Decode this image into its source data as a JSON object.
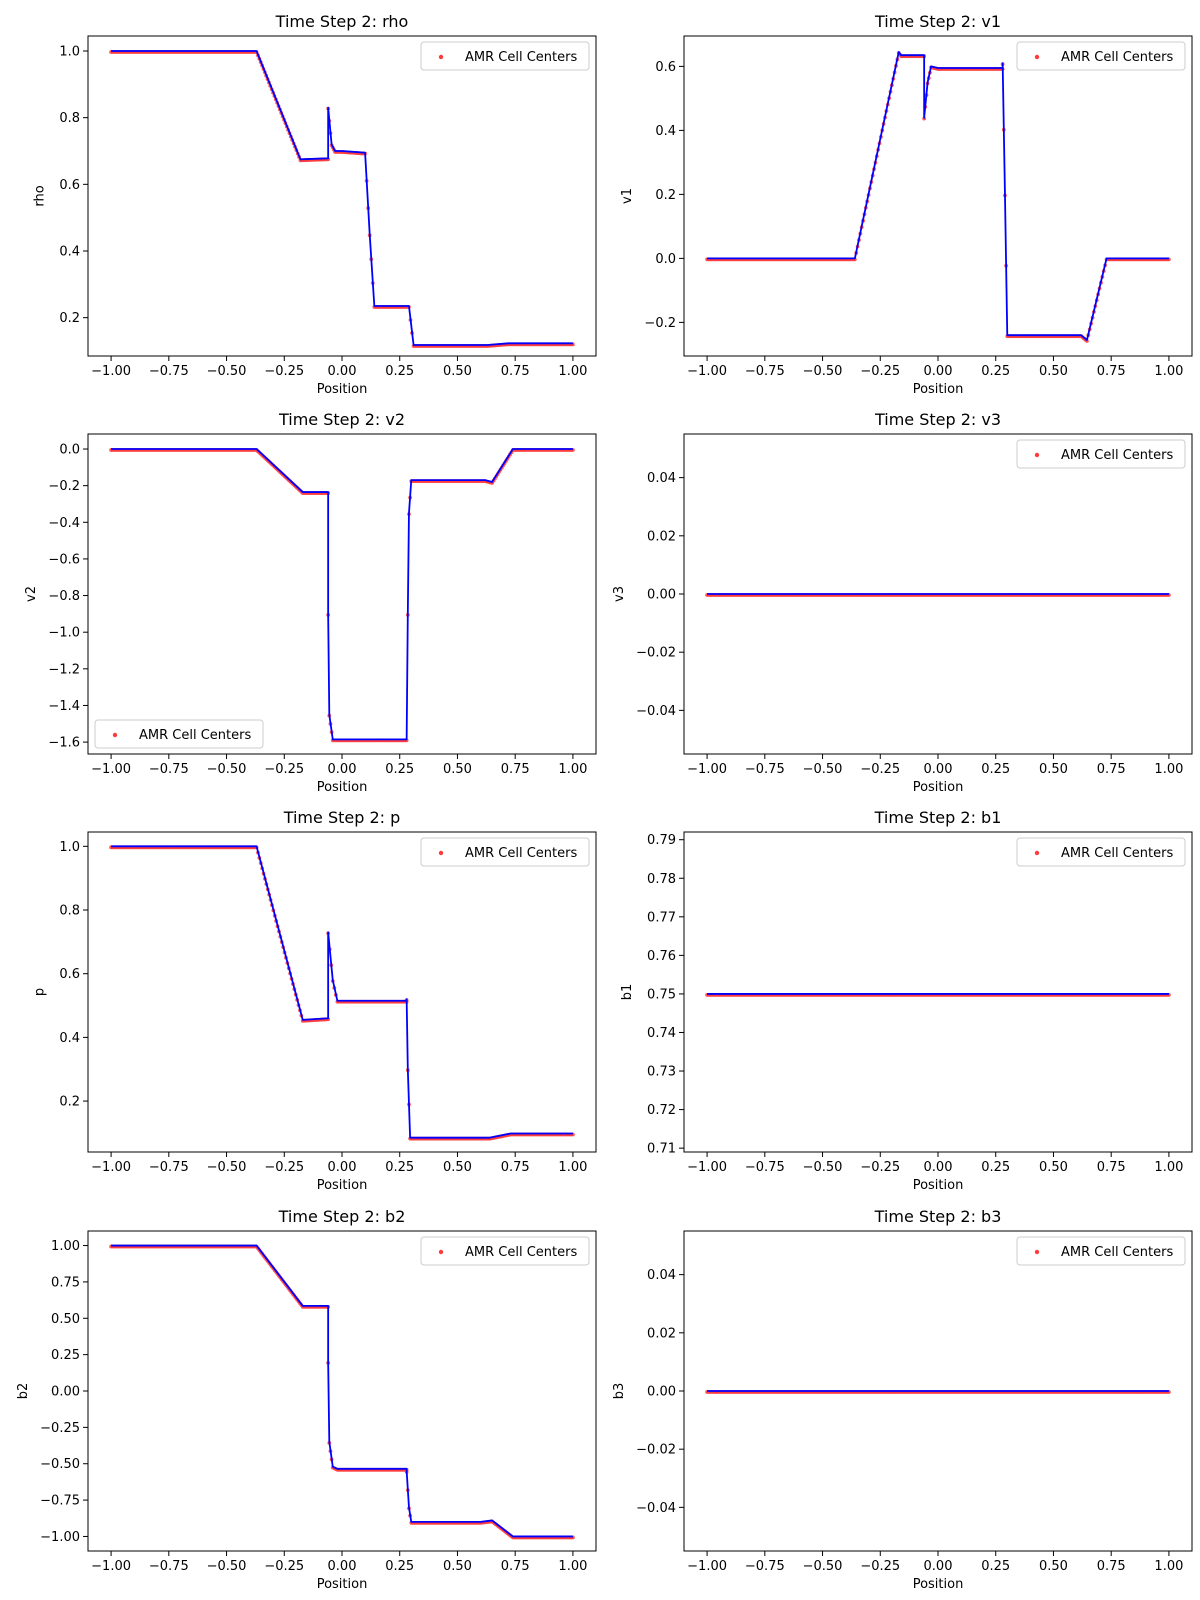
{
  "figure": {
    "accent_line": "#0000ff",
    "accent_points": "#ff3b3b"
  },
  "chart_data": [
    {
      "id": "rho",
      "type": "line",
      "title": "Time Step 2: rho",
      "xlabel": "Position",
      "ylabel": "rho",
      "xlim": [
        -1.1,
        1.1
      ],
      "ylim": [
        0.085,
        1.045
      ],
      "xticks": [
        -1.0,
        -0.75,
        -0.5,
        -0.25,
        0.0,
        0.25,
        0.5,
        0.75,
        1.0
      ],
      "xtick_labels": [
        "−1.00",
        "−0.75",
        "−0.50",
        "−0.25",
        "0.00",
        "0.25",
        "0.50",
        "0.75",
        "1.00"
      ],
      "yticks": [
        0.2,
        0.4,
        0.6,
        0.8,
        1.0
      ],
      "ytick_labels": [
        "0.2",
        "0.4",
        "0.6",
        "0.8",
        "1.0"
      ],
      "legend": {
        "label": "AMR Cell Centers",
        "loc": "upper right"
      },
      "series": [
        {
          "style": "line+points",
          "x": [
            -1.0,
            -0.37,
            -0.18,
            -0.06,
            -0.06,
            -0.045,
            -0.03,
            0.0,
            0.1,
            0.12,
            0.14,
            0.27,
            0.29,
            0.31,
            0.63,
            0.72,
            1.0
          ],
          "y": [
            1.0,
            1.0,
            0.675,
            0.678,
            0.83,
            0.72,
            0.7,
            0.7,
            0.695,
            0.45,
            0.235,
            0.235,
            0.235,
            0.118,
            0.118,
            0.123,
            0.123
          ]
        }
      ]
    },
    {
      "id": "v1",
      "type": "line",
      "title": "Time Step 2: v1",
      "xlabel": "Position",
      "ylabel": "v1",
      "xlim": [
        -1.1,
        1.1
      ],
      "ylim": [
        -0.305,
        0.695
      ],
      "xticks": [
        -1.0,
        -0.75,
        -0.5,
        -0.25,
        0.0,
        0.25,
        0.5,
        0.75,
        1.0
      ],
      "xtick_labels": [
        "−1.00",
        "−0.75",
        "−0.50",
        "−0.25",
        "0.00",
        "0.25",
        "0.50",
        "0.75",
        "1.00"
      ],
      "yticks": [
        -0.2,
        0.0,
        0.2,
        0.4,
        0.6
      ],
      "ytick_labels": [
        "−0.2",
        "0.0",
        "0.2",
        "0.4",
        "0.6"
      ],
      "legend": {
        "label": "AMR Cell Centers",
        "loc": "upper right"
      },
      "series": [
        {
          "style": "line+points",
          "x": [
            -1.0,
            -0.36,
            -0.17,
            -0.16,
            -0.06,
            -0.06,
            -0.045,
            -0.03,
            0.0,
            0.28,
            0.28,
            0.29,
            0.3,
            0.62,
            0.645,
            0.73,
            1.0
          ],
          "y": [
            0.0,
            0.0,
            0.645,
            0.635,
            0.635,
            0.44,
            0.55,
            0.6,
            0.595,
            0.595,
            0.61,
            0.2,
            -0.24,
            -0.24,
            -0.255,
            0.0,
            0.0
          ]
        }
      ]
    },
    {
      "id": "v2",
      "type": "line",
      "title": "Time Step 2: v2",
      "xlabel": "Position",
      "ylabel": "v2",
      "xlim": [
        -1.1,
        1.1
      ],
      "ylim": [
        -1.665,
        0.082
      ],
      "xticks": [
        -1.0,
        -0.75,
        -0.5,
        -0.25,
        0.0,
        0.25,
        0.5,
        0.75,
        1.0
      ],
      "xtick_labels": [
        "−1.00",
        "−0.75",
        "−0.50",
        "−0.25",
        "0.00",
        "0.25",
        "0.50",
        "0.75",
        "1.00"
      ],
      "yticks": [
        -1.6,
        -1.4,
        -1.2,
        -1.0,
        -0.8,
        -0.6,
        -0.4,
        -0.2,
        0.0
      ],
      "ytick_labels": [
        "−1.6",
        "−1.4",
        "−1.2",
        "−1.0",
        "−0.8",
        "−0.6",
        "−0.4",
        "−0.2",
        "0.0"
      ],
      "legend": {
        "label": "AMR Cell Centers",
        "loc": "lower left"
      },
      "series": [
        {
          "style": "line+points",
          "x": [
            -1.0,
            -0.37,
            -0.17,
            -0.06,
            -0.06,
            -0.055,
            -0.04,
            0.28,
            0.285,
            0.29,
            0.3,
            0.62,
            0.65,
            0.74,
            1.0
          ],
          "y": [
            0.0,
            0.0,
            -0.235,
            -0.235,
            -0.9,
            -1.45,
            -1.585,
            -1.585,
            -0.9,
            -0.35,
            -0.17,
            -0.17,
            -0.18,
            0.0,
            0.0
          ]
        }
      ]
    },
    {
      "id": "v3",
      "type": "line",
      "title": "Time Step 2: v3",
      "xlabel": "Position",
      "ylabel": "v3",
      "xlim": [
        -1.1,
        1.1
      ],
      "ylim": [
        -0.055,
        0.055
      ],
      "xticks": [
        -1.0,
        -0.75,
        -0.5,
        -0.25,
        0.0,
        0.25,
        0.5,
        0.75,
        1.0
      ],
      "xtick_labels": [
        "−1.00",
        "−0.75",
        "−0.50",
        "−0.25",
        "0.00",
        "0.25",
        "0.50",
        "0.75",
        "1.00"
      ],
      "yticks": [
        -0.04,
        -0.02,
        0.0,
        0.02,
        0.04
      ],
      "ytick_labels": [
        "−0.04",
        "−0.02",
        "0.00",
        "0.02",
        "0.04"
      ],
      "legend": {
        "label": "AMR Cell Centers",
        "loc": "upper right"
      },
      "series": [
        {
          "style": "line+points",
          "x": [
            -1.0,
            1.0
          ],
          "y": [
            0.0,
            0.0
          ]
        }
      ]
    },
    {
      "id": "p",
      "type": "line",
      "title": "Time Step 2: p",
      "xlabel": "Position",
      "ylabel": "p",
      "xlim": [
        -1.1,
        1.1
      ],
      "ylim": [
        0.04,
        1.045
      ],
      "xticks": [
        -1.0,
        -0.75,
        -0.5,
        -0.25,
        0.0,
        0.25,
        0.5,
        0.75,
        1.0
      ],
      "xtick_labels": [
        "−1.00",
        "−0.75",
        "−0.50",
        "−0.25",
        "0.00",
        "0.25",
        "0.50",
        "0.75",
        "1.00"
      ],
      "yticks": [
        0.2,
        0.4,
        0.6,
        0.8,
        1.0
      ],
      "ytick_labels": [
        "0.2",
        "0.4",
        "0.6",
        "0.8",
        "1.0"
      ],
      "legend": {
        "label": "AMR Cell Centers",
        "loc": "upper right"
      },
      "series": [
        {
          "style": "line+points",
          "x": [
            -1.0,
            -0.37,
            -0.17,
            -0.06,
            -0.06,
            -0.04,
            -0.02,
            0.28,
            0.28,
            0.285,
            0.295,
            0.64,
            0.73,
            1.0
          ],
          "y": [
            1.0,
            1.0,
            0.455,
            0.46,
            0.73,
            0.58,
            0.515,
            0.515,
            0.52,
            0.3,
            0.085,
            0.085,
            0.098,
            0.098
          ]
        }
      ]
    },
    {
      "id": "b1",
      "type": "line",
      "title": "Time Step 2: b1",
      "xlabel": "Position",
      "ylabel": "b1",
      "xlim": [
        -1.1,
        1.1
      ],
      "ylim": [
        0.709,
        0.792
      ],
      "xticks": [
        -1.0,
        -0.75,
        -0.5,
        -0.25,
        0.0,
        0.25,
        0.5,
        0.75,
        1.0
      ],
      "xtick_labels": [
        "−1.00",
        "−0.75",
        "−0.50",
        "−0.25",
        "0.00",
        "0.25",
        "0.50",
        "0.75",
        "1.00"
      ],
      "yticks": [
        0.71,
        0.72,
        0.73,
        0.74,
        0.75,
        0.76,
        0.77,
        0.78,
        0.79
      ],
      "ytick_labels": [
        "0.71",
        "0.72",
        "0.73",
        "0.74",
        "0.75",
        "0.76",
        "0.77",
        "0.78",
        "0.79"
      ],
      "legend": {
        "label": "AMR Cell Centers",
        "loc": "upper right"
      },
      "series": [
        {
          "style": "line+points",
          "x": [
            -1.0,
            1.0
          ],
          "y": [
            0.75,
            0.75
          ]
        }
      ]
    },
    {
      "id": "b2",
      "type": "line",
      "title": "Time Step 2: b2",
      "xlabel": "Position",
      "ylabel": "b2",
      "xlim": [
        -1.1,
        1.1
      ],
      "ylim": [
        -1.1,
        1.1
      ],
      "xticks": [
        -1.0,
        -0.75,
        -0.5,
        -0.25,
        0.0,
        0.25,
        0.5,
        0.75,
        1.0
      ],
      "xtick_labels": [
        "−1.00",
        "−0.75",
        "−0.50",
        "−0.25",
        "0.00",
        "0.25",
        "0.50",
        "0.75",
        "1.00"
      ],
      "yticks": [
        -1.0,
        -0.75,
        -0.5,
        -0.25,
        0.0,
        0.25,
        0.5,
        0.75,
        1.0
      ],
      "ytick_labels": [
        "−1.00",
        "−0.75",
        "−0.50",
        "−0.25",
        "0.00",
        "0.25",
        "0.50",
        "0.75",
        "1.00"
      ],
      "legend": {
        "label": "AMR Cell Centers",
        "loc": "upper right"
      },
      "series": [
        {
          "style": "line+points",
          "x": [
            -1.0,
            -0.37,
            -0.17,
            -0.06,
            -0.06,
            -0.055,
            -0.04,
            -0.02,
            0.28,
            0.28,
            0.29,
            0.3,
            0.6,
            0.65,
            0.74,
            1.0
          ],
          "y": [
            1.0,
            1.0,
            0.585,
            0.585,
            0.2,
            -0.35,
            -0.52,
            -0.535,
            -0.535,
            -0.55,
            -0.8,
            -0.9,
            -0.9,
            -0.89,
            -1.0,
            -1.0
          ]
        }
      ]
    },
    {
      "id": "b3",
      "type": "line",
      "title": "Time Step 2: b3",
      "xlabel": "Position",
      "ylabel": "b3",
      "xlim": [
        -1.1,
        1.1
      ],
      "ylim": [
        -0.055,
        0.055
      ],
      "xticks": [
        -1.0,
        -0.75,
        -0.5,
        -0.25,
        0.0,
        0.25,
        0.5,
        0.75,
        1.0
      ],
      "xtick_labels": [
        "−1.00",
        "−0.75",
        "−0.50",
        "−0.25",
        "0.00",
        "0.25",
        "0.50",
        "0.75",
        "1.00"
      ],
      "yticks": [
        -0.04,
        -0.02,
        0.0,
        0.02,
        0.04
      ],
      "ytick_labels": [
        "−0.04",
        "−0.02",
        "0.00",
        "0.02",
        "0.04"
      ],
      "legend": {
        "label": "AMR Cell Centers",
        "loc": "upper right"
      },
      "series": [
        {
          "style": "line+points",
          "x": [
            -1.0,
            1.0
          ],
          "y": [
            0.0,
            0.0
          ]
        }
      ]
    }
  ]
}
